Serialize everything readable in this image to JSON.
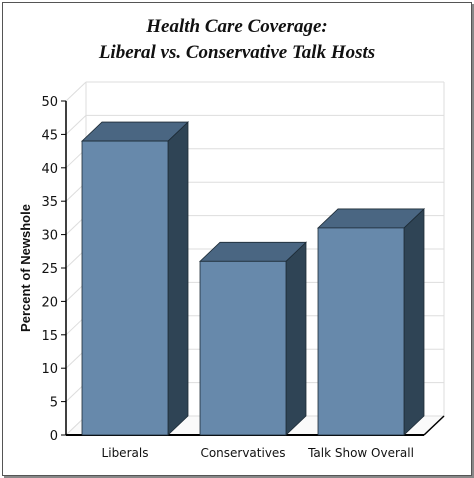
{
  "chart_data": {
    "type": "bar",
    "title_line1": "Health Care Coverage:",
    "title_line2": "Liberal vs. Conservative Talk Hosts",
    "xlabel": "",
    "ylabel": "Percent of Newshole",
    "ylim": [
      0,
      50
    ],
    "yticks": [
      0,
      5,
      10,
      15,
      20,
      25,
      30,
      35,
      40,
      45,
      50
    ],
    "categories": [
      "Liberals",
      "Conservatives",
      "Talk Show Overall"
    ],
    "values": [
      44,
      26,
      31
    ],
    "grid": true,
    "legend": "none",
    "colors": {
      "front": "#6789ab",
      "top": "#4a6682",
      "side": "#2f4455",
      "grid": "#dddddd"
    }
  }
}
